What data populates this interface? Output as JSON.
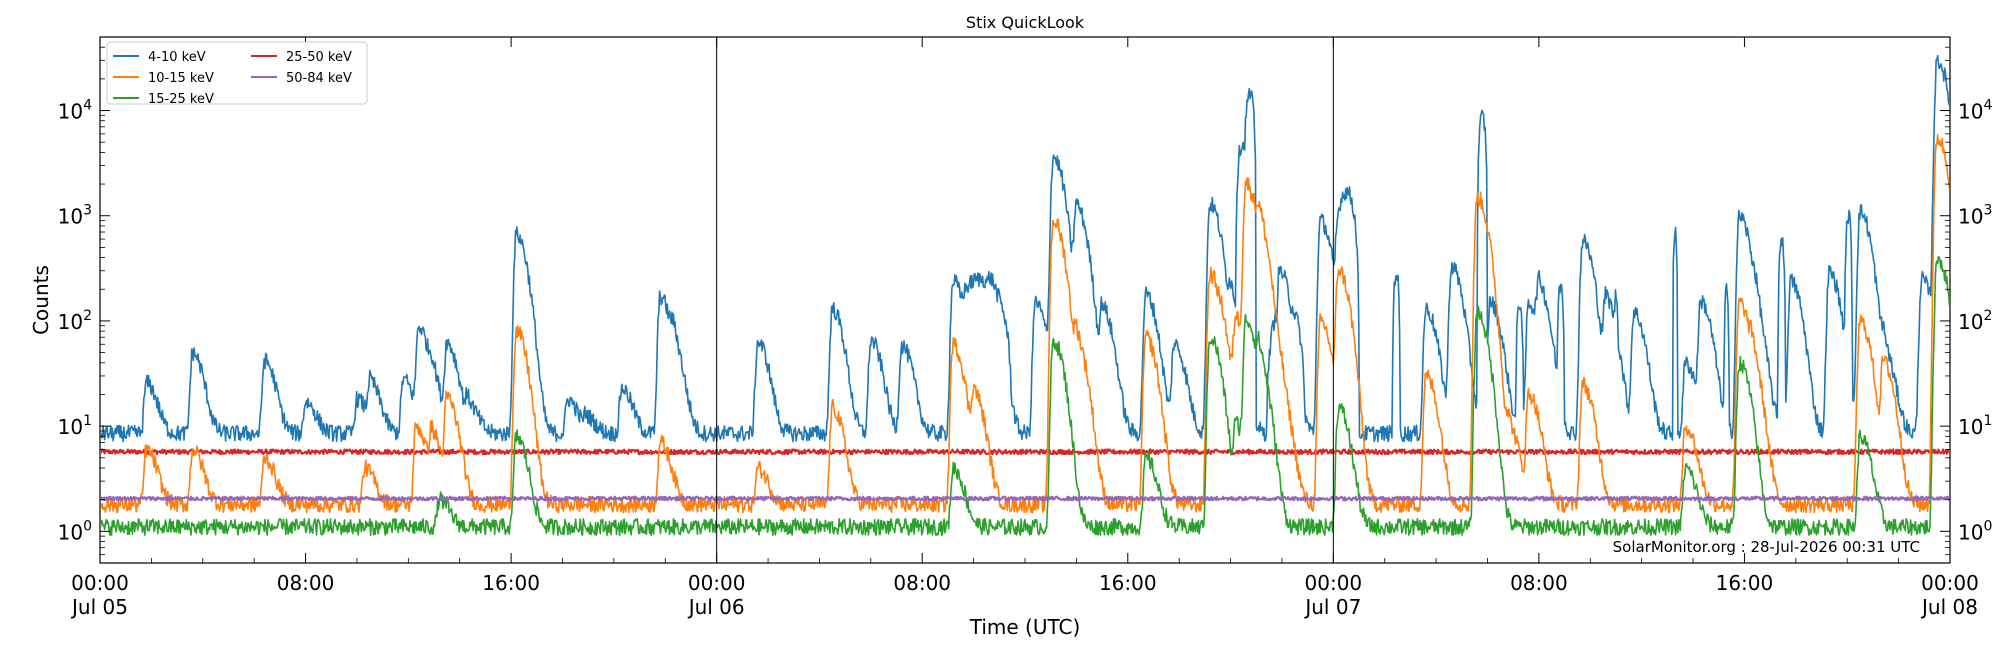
{
  "chart_data": {
    "type": "line",
    "title": "Stix QuickLook",
    "xlabel": "Time (UTC)",
    "ylabel": "Counts",
    "yscale": "log",
    "ylim": [
      0.5,
      50000
    ],
    "xlim_hours": [
      0,
      72
    ],
    "grid": false,
    "legend_position": "top-left",
    "x_ticks": [
      {
        "hour": 0,
        "line1": "00:00",
        "line2": "Jul 05"
      },
      {
        "hour": 8,
        "line1": "08:00",
        "line2": ""
      },
      {
        "hour": 16,
        "line1": "16:00",
        "line2": ""
      },
      {
        "hour": 24,
        "line1": "00:00",
        "line2": "Jul 06"
      },
      {
        "hour": 32,
        "line1": "08:00",
        "line2": ""
      },
      {
        "hour": 40,
        "line1": "16:00",
        "line2": ""
      },
      {
        "hour": 48,
        "line1": "00:00",
        "line2": "Jul 07"
      },
      {
        "hour": 56,
        "line1": "08:00",
        "line2": ""
      },
      {
        "hour": 64,
        "line1": "16:00",
        "line2": ""
      },
      {
        "hour": 72,
        "line1": "00:00",
        "line2": "Jul 08"
      }
    ],
    "y_ticks": [
      {
        "value": 1,
        "base": "10",
        "exp": "0"
      },
      {
        "value": 10,
        "base": "10",
        "exp": "1"
      },
      {
        "value": 100,
        "base": "10",
        "exp": "2"
      },
      {
        "value": 1000,
        "base": "10",
        "exp": "3"
      },
      {
        "value": 10000,
        "base": "10",
        "exp": "4"
      }
    ],
    "day_boundaries_hours": [
      24,
      48
    ],
    "annotation": "SolarMonitor.org : 28-Jul-2026 00:31 UTC",
    "series": [
      {
        "name": "4-10 keV",
        "color": "#1f77b4",
        "baseline": 8.5,
        "peaks": [
          [
            1.8,
            26
          ],
          [
            3.6,
            50
          ],
          [
            6.4,
            42
          ],
          [
            8,
            17
          ],
          [
            10,
            18
          ],
          [
            10.5,
            25
          ],
          [
            11.8,
            28
          ],
          [
            12.4,
            85
          ],
          [
            12.9,
            22
          ],
          [
            13.5,
            60
          ],
          [
            14.3,
            16
          ],
          [
            16.2,
            670
          ],
          [
            18.2,
            18
          ],
          [
            18.9,
            12
          ],
          [
            20.3,
            23
          ],
          [
            21.8,
            170
          ],
          [
            22.3,
            45
          ],
          [
            25.6,
            63
          ],
          [
            28.5,
            130
          ],
          [
            30.0,
            65
          ],
          [
            31.2,
            58
          ],
          [
            33.2,
            240
          ],
          [
            34.6,
            260
          ],
          [
            36.4,
            150
          ],
          [
            37.1,
            3600
          ],
          [
            38.0,
            1200
          ],
          [
            39,
            130
          ],
          [
            40.7,
            180
          ],
          [
            41.8,
            60
          ],
          [
            43.2,
            1300
          ],
          [
            44.0,
            150
          ],
          [
            45.9,
            300
          ],
          [
            47.5,
            900
          ],
          [
            51.6,
            130
          ],
          [
            52.6,
            330
          ],
          [
            54.1,
            150
          ],
          [
            55.6,
            150
          ],
          [
            56,
            180
          ],
          [
            57.7,
            580
          ],
          [
            58.6,
            160
          ],
          [
            59.7,
            120
          ],
          [
            61.7,
            40
          ],
          [
            62.3,
            150
          ],
          [
            63.8,
            1000
          ],
          [
            64.4,
            80
          ],
          [
            65.8,
            240
          ],
          [
            67.3,
            290
          ],
          [
            68.5,
            1100
          ],
          [
            69.4,
            50
          ],
          [
            70.9,
            250
          ],
          [
            71.5,
            30000
          ]
        ],
        "flares": [
          [
            12.3,
            12.6,
            80
          ],
          [
            16.1,
            16.4,
            650
          ],
          [
            33,
            35.5,
            250
          ],
          [
            44.2,
            44.7,
            4800
          ],
          [
            44.5,
            45,
            14000
          ],
          [
            45.4,
            46.9,
            150
          ],
          [
            48,
            49,
            1700
          ],
          [
            50.3,
            50.6,
            290
          ],
          [
            53.6,
            54,
            8800
          ],
          [
            55.1,
            55.4,
            150
          ],
          [
            56.7,
            57,
            220
          ],
          [
            58.9,
            59.1,
            180
          ],
          [
            61.2,
            61.4,
            700
          ],
          [
            63.2,
            63.4,
            200
          ],
          [
            65.3,
            65.6,
            600
          ],
          [
            67.9,
            68.2,
            1000
          ]
        ]
      },
      {
        "name": "10-15 keV",
        "color": "#ff7f0e",
        "baseline": 1.8,
        "peaks": [
          [
            1.8,
            6
          ],
          [
            3.6,
            6
          ],
          [
            6.4,
            5
          ],
          [
            10.3,
            4
          ],
          [
            12.3,
            10
          ],
          [
            12.9,
            8
          ],
          [
            13.5,
            18
          ],
          [
            16.2,
            80
          ],
          [
            21.8,
            7
          ],
          [
            25.6,
            4
          ],
          [
            28.5,
            15
          ],
          [
            33.2,
            60
          ],
          [
            34,
            20
          ],
          [
            37.1,
            900
          ],
          [
            38,
            60
          ],
          [
            40.7,
            70
          ],
          [
            43.2,
            280
          ],
          [
            43.7,
            30
          ],
          [
            44.2,
            100
          ],
          [
            44.6,
            2000
          ],
          [
            45.1,
            600
          ],
          [
            45.9,
            20
          ],
          [
            47.5,
            100
          ],
          [
            48.2,
            300
          ],
          [
            51.6,
            30
          ],
          [
            53.6,
            1500
          ],
          [
            54.8,
            10
          ],
          [
            55.6,
            20
          ],
          [
            57.7,
            25
          ],
          [
            61.7,
            10
          ],
          [
            63.8,
            150
          ],
          [
            64.3,
            25
          ],
          [
            68.5,
            100
          ],
          [
            69.4,
            40
          ],
          [
            71.5,
            5500
          ]
        ]
      },
      {
        "name": "15-25 keV",
        "color": "#2ca02c",
        "baseline": 1.1,
        "peaks": [
          [
            13.2,
            2
          ],
          [
            16.2,
            8
          ],
          [
            33.2,
            4
          ],
          [
            37.1,
            65
          ],
          [
            40.7,
            5
          ],
          [
            43.2,
            70
          ],
          [
            44.2,
            10
          ],
          [
            44.6,
            100
          ],
          [
            45.1,
            30
          ],
          [
            48.2,
            15
          ],
          [
            53.6,
            120
          ],
          [
            61.7,
            4
          ],
          [
            63.8,
            40
          ],
          [
            68.5,
            8
          ],
          [
            71.5,
            400
          ]
        ]
      },
      {
        "name": "25-50 keV",
        "color": "#d62728",
        "baseline": 5.7,
        "peaks": []
      },
      {
        "name": "50-84 keV",
        "color": "#9467bd",
        "baseline": 2.05,
        "peaks": []
      }
    ]
  }
}
